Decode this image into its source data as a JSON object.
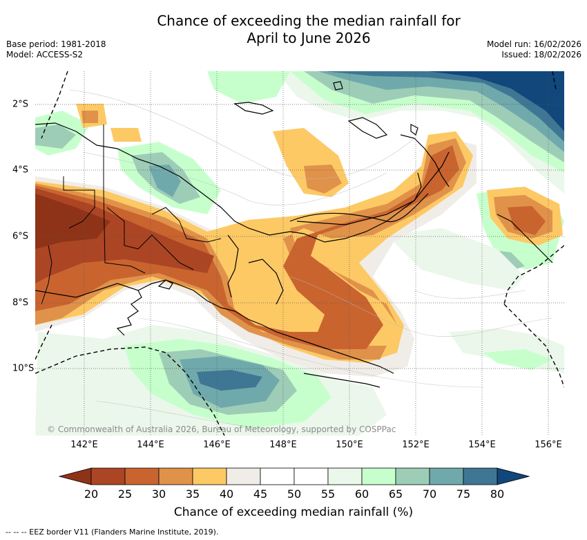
{
  "title_line1": "Chance of exceeding the median rainfall for",
  "title_line2": "April to June 2026",
  "base_period": "Base period: 1981-2018",
  "model": "Model: ACCESS-S2",
  "model_run": "Model run: 16/02/2026",
  "issued": "Issued: 18/02/2026",
  "credit": "© Commonwealth of Australia 2026, Bureau of Meteorology, supported by COSPPac",
  "lon_labels": [
    "142°E",
    "144°E",
    "146°E",
    "148°E",
    "150°E",
    "152°E",
    "154°E",
    "156°E"
  ],
  "lat_labels": [
    "2°S",
    "4°S",
    "6°S",
    "8°S",
    "10°S"
  ],
  "legend": {
    "ticks": [
      "20",
      "25",
      "30",
      "35",
      "40",
      "45",
      "50",
      "55",
      "60",
      "65",
      "70",
      "75",
      "80"
    ],
    "colors": [
      "#ab4524",
      "#c9642f",
      "#e0924a",
      "#fdc965",
      "#f0ede8",
      "#ffffff",
      "#ffffff",
      "#ebf7eb",
      "#c7ffcc",
      "#9ecdb7",
      "#6fa9ab",
      "#3f7694"
    ],
    "low_color": "#8f3318",
    "high_color": "#11477b",
    "title": "Chance of exceeding median rainfall (%)"
  },
  "footnote": "-- -- -- EEZ border V11 (Flanders Marine Institute, 2019)."
}
